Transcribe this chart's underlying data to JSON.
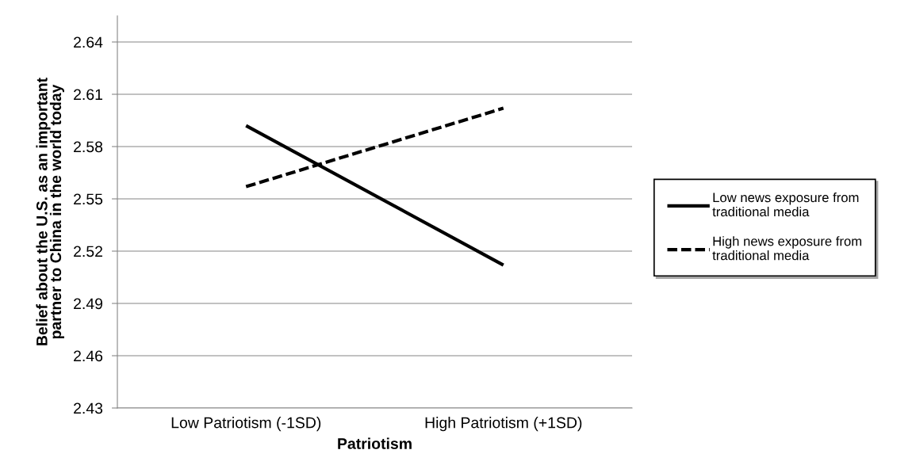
{
  "chart_data": {
    "type": "line",
    "xlabel": "Patriotism",
    "ylabel": "Belief about the U.S. as an important\npartner to China in the world today",
    "categories": [
      "Low Patriotism (-1SD)",
      "High Patriotism (+1SD)"
    ],
    "series": [
      {
        "name": "Low news exposure from\ntraditional media",
        "color": "#000000",
        "line_style": "solid",
        "values": [
          2.592,
          2.512
        ]
      },
      {
        "name": "High news exposure from\ntraditional media",
        "color": "#000000",
        "line_style": "dashed",
        "values": [
          2.557,
          2.602
        ]
      }
    ],
    "ylim": [
      2.43,
      2.655
    ],
    "yticks": [
      2.43,
      2.46,
      2.49,
      2.52,
      2.55,
      2.58,
      2.61,
      2.64
    ],
    "grid": "y",
    "legend": "right",
    "marker": "none"
  }
}
